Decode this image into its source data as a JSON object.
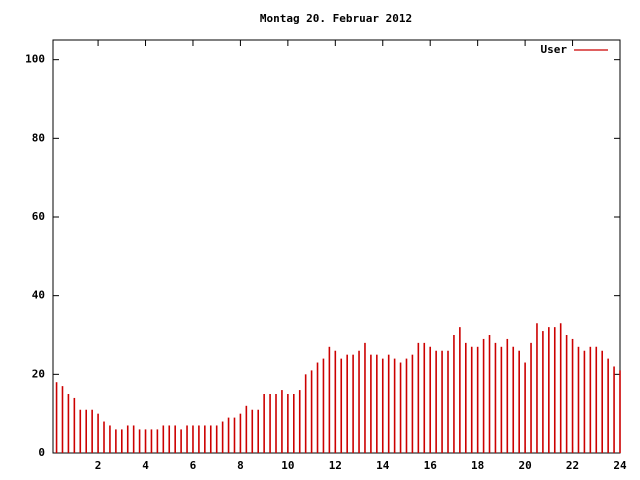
{
  "chart_data": {
    "type": "impulse",
    "title": "Montag 20. Februar 2012",
    "x": [
      0.25,
      0.5,
      0.75,
      1,
      1.25,
      1.5,
      1.75,
      2,
      2.25,
      2.5,
      2.75,
      3,
      3.25,
      3.5,
      3.75,
      4,
      4.25,
      4.5,
      4.75,
      5,
      5.25,
      5.5,
      5.75,
      6,
      6.25,
      6.5,
      6.75,
      7,
      7.25,
      7.5,
      7.75,
      8,
      8.25,
      8.5,
      8.75,
      9,
      9.25,
      9.5,
      9.75,
      10,
      10.25,
      10.5,
      10.75,
      11,
      11.25,
      11.5,
      11.75,
      12,
      12.25,
      12.5,
      12.75,
      13,
      13.25,
      13.5,
      13.75,
      14,
      14.25,
      14.5,
      14.75,
      15,
      15.25,
      15.5,
      15.75,
      16,
      16.25,
      16.5,
      16.75,
      17,
      17.25,
      17.5,
      17.75,
      18,
      18.25,
      18.5,
      18.75,
      19,
      19.25,
      19.5,
      19.75,
      20,
      20.25,
      20.5,
      20.75,
      21,
      21.25,
      21.5,
      21.75,
      22,
      22.25,
      22.5,
      22.75,
      23,
      23.25,
      23.5,
      23.75,
      24
    ],
    "series": [
      {
        "name": "User",
        "color": "#cc0000",
        "values": [
          18,
          17,
          15,
          14,
          11,
          11,
          11,
          10,
          8,
          7,
          6,
          6,
          7,
          7,
          6,
          6,
          6,
          6,
          7,
          7,
          7,
          6,
          7,
          7,
          7,
          7,
          7,
          7,
          8,
          9,
          9,
          10,
          12,
          11,
          11,
          15,
          15,
          15,
          16,
          15,
          15,
          16,
          20,
          21,
          23,
          24,
          27,
          26,
          24,
          25,
          25,
          26,
          28,
          25,
          25,
          24,
          25,
          24,
          23,
          24,
          25,
          28,
          28,
          27,
          26,
          26,
          26,
          30,
          32,
          28,
          27,
          27,
          29,
          30,
          28,
          27,
          29,
          27,
          26,
          23,
          28,
          33,
          31,
          32,
          32,
          33,
          30,
          29,
          27,
          26,
          27,
          27,
          26,
          24,
          22,
          21
        ]
      }
    ],
    "xlim": [
      0.1,
      24
    ],
    "xticks": [
      2,
      4,
      6,
      8,
      10,
      12,
      14,
      16,
      18,
      20,
      22,
      24
    ],
    "ylim": [
      0,
      105
    ],
    "yticks": [
      0,
      20,
      40,
      60,
      80,
      100
    ],
    "legend": "top-right"
  }
}
